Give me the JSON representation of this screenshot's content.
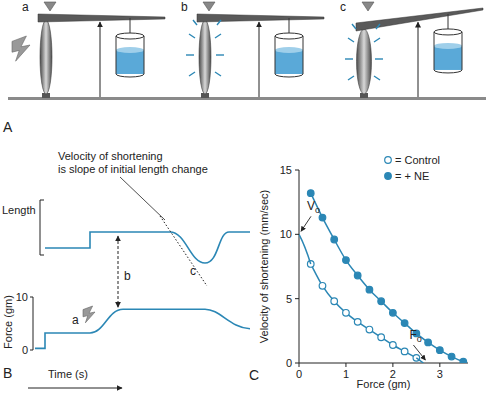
{
  "panel_a": {
    "label": "A",
    "setups": [
      "a",
      "b",
      "c"
    ]
  },
  "panel_b": {
    "label": "B",
    "annotation": [
      "Velocity of shortening",
      "is slope of initial length change"
    ],
    "length_label": "Length",
    "force_label": "Force (gm)",
    "force_lim": [
      0,
      10
    ],
    "force_ticks": [
      0,
      10
    ],
    "time_label": "Time (s)",
    "markers": [
      "a",
      "b",
      "c"
    ]
  },
  "panel_c": {
    "label": "C"
  },
  "chart_data": {
    "type": "scatter",
    "x_label": "Force (gm)",
    "y_label": "Velocity of shortening (mm/sec)",
    "xlim": [
      0,
      3.6
    ],
    "ylim": [
      0,
      15
    ],
    "xticks": [
      0,
      1,
      2,
      3
    ],
    "yticks": [
      0,
      5,
      10,
      15
    ],
    "grid": false,
    "legend": "top-right",
    "series": [
      {
        "name": "= Control",
        "color": "#2b87b5",
        "marker": "open",
        "line_style": "solid",
        "x": [
          0.25,
          0.5,
          0.75,
          1.0,
          1.25,
          1.5,
          1.75,
          2.0,
          2.25,
          2.5
        ],
        "values": [
          7.7,
          6.0,
          4.8,
          3.9,
          3.2,
          2.6,
          2.0,
          1.4,
          0.9,
          0.4
        ]
      },
      {
        "name": "= + NE",
        "color": "#2b87b5",
        "marker": "filled",
        "line_style": "solid",
        "x": [
          0.25,
          0.5,
          0.75,
          1.0,
          1.25,
          1.5,
          1.75,
          2.0,
          2.25,
          2.5,
          2.75,
          3.0,
          3.25,
          3.5
        ],
        "values": [
          13.2,
          11.3,
          9.6,
          8.0,
          6.8,
          5.7,
          4.8,
          3.9,
          3.1,
          2.3,
          1.6,
          1.0,
          0.5,
          0.1
        ]
      }
    ],
    "annotations": [
      {
        "text": "V",
        "subscript": "o",
        "x": 0,
        "y": 10
      },
      {
        "text": "F",
        "subscript": "o",
        "x": 2.65,
        "y": 0
      }
    ]
  }
}
